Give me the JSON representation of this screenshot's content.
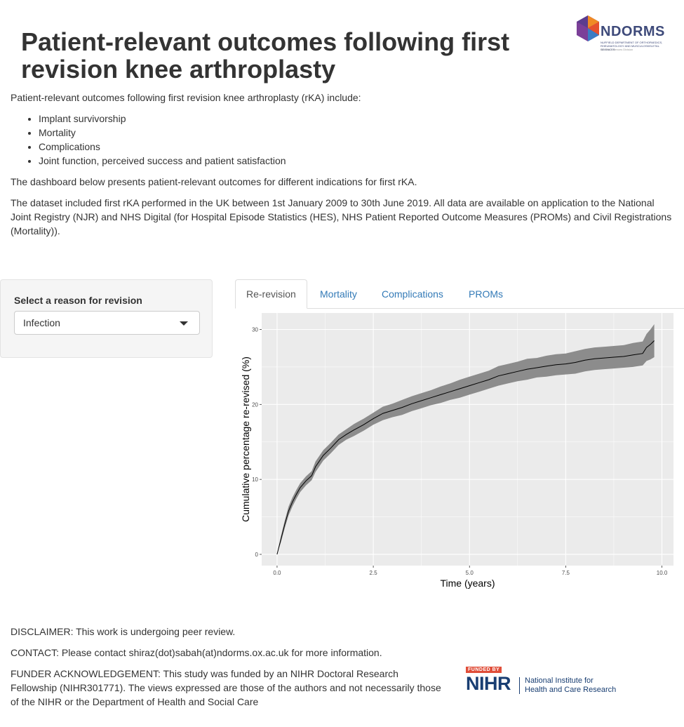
{
  "header": {
    "title": "Patient-relevant outcomes following first revision knee arthroplasty",
    "logo_text": "NDORMS",
    "logo_subtitle": "NUFFIELD DEPARTMENT OF ORTHOPAEDICS, RHEUMATOLOGY AND MUSCULOSKELETAL SCIENCES",
    "logo_division": "Medical Sciences Division"
  },
  "intro": {
    "lead": "Patient-relevant outcomes following first revision knee arthroplasty (rKA) include:",
    "outcomes": [
      "Implant survivorship",
      "Mortality",
      "Complications",
      "Joint function, perceived success and patient satisfaction"
    ],
    "dashboard_note": "The dashboard below presents patient-relevant outcomes for different indications for first rKA.",
    "dataset_note": "The dataset included first rKA performed in the UK between 1st January 2009 to 30th June 2019. All data are available on application to the National Joint Registry (NJR) and NHS Digital (for Hospital Episode Statistics (HES), NHS Patient Reported Outcome Measures (PROMs) and Civil Registrations (Mortality))."
  },
  "sidebar": {
    "label": "Select a reason for revision",
    "selected": "Infection"
  },
  "tabs": [
    {
      "label": "Re-revision",
      "active": true
    },
    {
      "label": "Mortality",
      "active": false
    },
    {
      "label": "Complications",
      "active": false
    },
    {
      "label": "PROMs",
      "active": false
    }
  ],
  "chart_data": {
    "type": "line",
    "xlabel": "Time (years)",
    "ylabel": "Cumulative percentage re-revised (%)",
    "xlim": [
      -0.4,
      10.3
    ],
    "ylim": [
      -1.5,
      32.2
    ],
    "x_ticks": [
      "0.0",
      "2.5",
      "5.0",
      "7.5",
      "10.0"
    ],
    "y_ticks": [
      "0",
      "10",
      "20",
      "30"
    ],
    "grid": true,
    "colors": {
      "panel": "#ebebeb",
      "grid": "#ffffff",
      "line": "#000000",
      "band": "#8c8c8c"
    },
    "series": [
      {
        "x": [
          0,
          0.1,
          0.2,
          0.3,
          0.4,
          0.5,
          0.6,
          0.75,
          0.9,
          1.0,
          1.2,
          1.4,
          1.6,
          1.8,
          2.0,
          2.25,
          2.5,
          2.75,
          3.0,
          3.25,
          3.5,
          3.75,
          4.0,
          4.25,
          4.5,
          4.75,
          5.0,
          5.25,
          5.5,
          5.75,
          6.0,
          6.25,
          6.5,
          6.75,
          7.0,
          7.25,
          7.5,
          7.75,
          8.0,
          8.25,
          8.5,
          8.75,
          9.0,
          9.25,
          9.5,
          9.6,
          9.7,
          9.8
        ],
        "y": [
          0,
          2.0,
          4.0,
          5.8,
          7.0,
          8.0,
          8.9,
          9.8,
          10.5,
          11.7,
          13.2,
          14.2,
          15.3,
          16.0,
          16.6,
          17.3,
          18.1,
          18.8,
          19.2,
          19.6,
          20.1,
          20.5,
          20.9,
          21.3,
          21.7,
          22.1,
          22.5,
          22.9,
          23.3,
          23.8,
          24.1,
          24.4,
          24.7,
          24.9,
          25.1,
          25.3,
          25.4,
          25.6,
          25.9,
          26.1,
          26.2,
          26.3,
          26.4,
          26.6,
          26.8,
          27.6,
          28.0,
          28.5
        ],
        "lower": [
          0,
          1.6,
          3.5,
          5.2,
          6.4,
          7.4,
          8.3,
          9.2,
          9.9,
          11.0,
          12.5,
          13.5,
          14.6,
          15.3,
          15.8,
          16.5,
          17.3,
          17.9,
          18.3,
          18.6,
          19.1,
          19.5,
          19.9,
          20.2,
          20.6,
          20.9,
          21.3,
          21.7,
          22.1,
          22.5,
          22.8,
          23.1,
          23.3,
          23.6,
          23.7,
          23.9,
          24.0,
          24.1,
          24.4,
          24.6,
          24.7,
          24.8,
          24.9,
          25.0,
          25.2,
          25.8,
          26.0,
          26.3
        ],
        "upper": [
          0,
          2.4,
          4.5,
          6.4,
          7.6,
          8.6,
          9.5,
          10.4,
          11.1,
          12.4,
          13.9,
          14.9,
          16.0,
          16.7,
          17.4,
          18.1,
          18.9,
          19.7,
          20.1,
          20.6,
          21.1,
          21.5,
          21.9,
          22.4,
          22.8,
          23.3,
          23.7,
          24.1,
          24.5,
          25.1,
          25.4,
          25.7,
          26.1,
          26.2,
          26.5,
          26.7,
          26.8,
          27.1,
          27.4,
          27.6,
          27.7,
          27.8,
          27.9,
          28.2,
          28.4,
          29.4,
          30.0,
          30.7
        ]
      }
    ]
  },
  "footer": {
    "disclaimer": "DISCLAIMER: This work is undergoing peer review.",
    "contact": "CONTACT: Please contact shiraz(dot)sabah(at)ndorms.ox.ac.uk for more information.",
    "funder": "FUNDER ACKNOWLEDGEMENT: This study was funded by an NIHR Doctoral Research Fellowship (NIHR301771). The views expressed are those of the authors and not necessarily those of the NIHR or the Department of Health and Social Care",
    "nihr_badge": "FUNDED BY",
    "nihr_short": "NIHR",
    "nihr_line1": "National Institute for",
    "nihr_line2": "Health and Care Research"
  }
}
